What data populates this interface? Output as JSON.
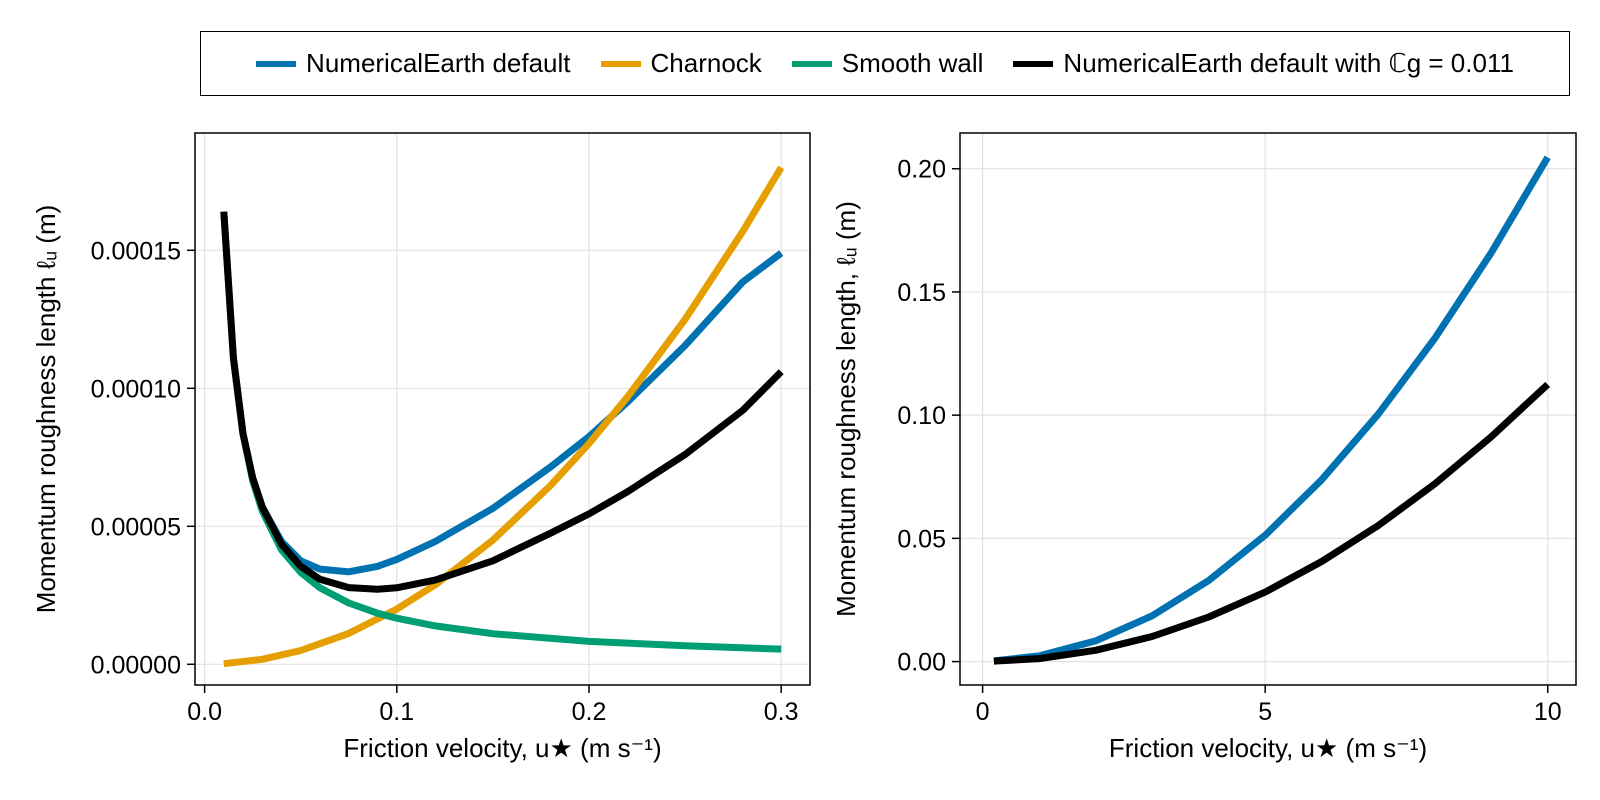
{
  "legend": {
    "items": [
      {
        "label": "NumericalEarth default",
        "color": "#0072b2"
      },
      {
        "label": "Charnock",
        "color": "#e69f00"
      },
      {
        "label": "Smooth wall",
        "color": "#009e73"
      },
      {
        "label": "NumericalEarth default with ℂg = 0.011",
        "color": "#000000"
      }
    ]
  },
  "chart_data": [
    {
      "type": "line",
      "xlabel": "Friction velocity, u★ (m s⁻¹)",
      "ylabel": "Momentum roughness length ℓᵤ (m)",
      "xlim": [
        -0.005,
        0.315
      ],
      "ylim": [
        -7.5e-06,
        0.0001925
      ],
      "xticks": [
        0.0,
        0.1,
        0.2,
        0.3
      ],
      "xtick_labels": [
        "0.0",
        "0.1",
        "0.2",
        "0.3"
      ],
      "yticks": [
        0.0,
        5e-05,
        0.0001,
        0.00015
      ],
      "ytick_labels": [
        "0.00000",
        "0.00005",
        "0.00010",
        "0.00015"
      ],
      "grid": true,
      "series": [
        {
          "name": "NumericalEarth default",
          "color": "#0072b2",
          "x": [
            0.01,
            0.015,
            0.02,
            0.025,
            0.03,
            0.04,
            0.05,
            0.06,
            0.075,
            0.09,
            0.1,
            0.12,
            0.15,
            0.18,
            0.2,
            0.22,
            0.25,
            0.28,
            0.3
          ],
          "y": [
            0.000164,
            0.000111,
            8.35e-05,
            6.75e-05,
            5.7e-05,
            4.45e-05,
            3.75e-05,
            3.45e-05,
            3.35e-05,
            3.55e-05,
            3.8e-05,
            4.45e-05,
            5.65e-05,
            7.15e-05,
            8.25e-05,
            9.5e-05,
            0.0001155,
            0.0001385,
            0.000149
          ]
        },
        {
          "name": "Charnock",
          "color": "#e69f00",
          "x": [
            0.01,
            0.03,
            0.05,
            0.075,
            0.1,
            0.12,
            0.15,
            0.18,
            0.2,
            0.22,
            0.25,
            0.28,
            0.3
          ],
          "y": [
            2e-07,
            1.8e-06,
            5e-06,
            1.12e-05,
            2e-05,
            2.88e-05,
            4.5e-05,
            6.48e-05,
            8e-05,
            9.68e-05,
            0.000125,
            0.0001568,
            0.00018
          ]
        },
        {
          "name": "Smooth wall",
          "color": "#009e73",
          "x": [
            0.015,
            0.02,
            0.025,
            0.03,
            0.04,
            0.05,
            0.06,
            0.075,
            0.09,
            0.1,
            0.12,
            0.15,
            0.2,
            0.25,
            0.3
          ],
          "y": [
            0.000111,
            8.35e-05,
            6.65e-05,
            5.55e-05,
            4.15e-05,
            3.33e-05,
            2.77e-05,
            2.22e-05,
            1.85e-05,
            1.67e-05,
            1.39e-05,
            1.11e-05,
            8.3e-06,
            6.7e-06,
            5.5e-06
          ]
        },
        {
          "name": "NumericalEarth default with ℂg = 0.011",
          "color": "#000000",
          "x": [
            0.01,
            0.015,
            0.02,
            0.025,
            0.03,
            0.04,
            0.05,
            0.06,
            0.075,
            0.09,
            0.1,
            0.12,
            0.15,
            0.18,
            0.2,
            0.22,
            0.25,
            0.28,
            0.3
          ],
          "y": [
            0.000164,
            0.000111,
            8.35e-05,
            6.75e-05,
            5.7e-05,
            4.35e-05,
            3.55e-05,
            3.08e-05,
            2.78e-05,
            2.72e-05,
            2.77e-05,
            3.05e-05,
            3.75e-05,
            4.75e-05,
            5.45e-05,
            6.25e-05,
            7.6e-05,
            9.2e-05,
            0.000106
          ]
        }
      ]
    },
    {
      "type": "line",
      "xlabel": "Friction velocity, u★ (m s⁻¹)",
      "ylabel": "Momentum roughness length, ℓᵤ (m)",
      "xlim": [
        -0.4,
        10.5
      ],
      "ylim": [
        -0.0095,
        0.2145
      ],
      "xticks": [
        0,
        5,
        10
      ],
      "xtick_labels": [
        "0",
        "5",
        "10"
      ],
      "yticks": [
        0.0,
        0.05,
        0.1,
        0.15,
        0.2
      ],
      "ytick_labels": [
        "0.00",
        "0.05",
        "0.10",
        "0.15",
        "0.20"
      ],
      "grid": true,
      "series": [
        {
          "name": "NumericalEarth default",
          "color": "#0072b2",
          "x": [
            0.2,
            1,
            2,
            3,
            4,
            5,
            6,
            7,
            8,
            9,
            10
          ],
          "y": [
            0.0003,
            0.0023,
            0.0084,
            0.0186,
            0.0329,
            0.0513,
            0.0738,
            0.1004,
            0.1311,
            0.1659,
            0.2046
          ]
        },
        {
          "name": "NumericalEarth default with ℂg = 0.011",
          "color": "#000000",
          "x": [
            0.2,
            1,
            2,
            3,
            4,
            5,
            6,
            7,
            8,
            9,
            10
          ],
          "y": [
            0.0002,
            0.0012,
            0.0046,
            0.0102,
            0.0181,
            0.0282,
            0.0406,
            0.0552,
            0.0721,
            0.0912,
            0.1125
          ]
        }
      ]
    }
  ]
}
